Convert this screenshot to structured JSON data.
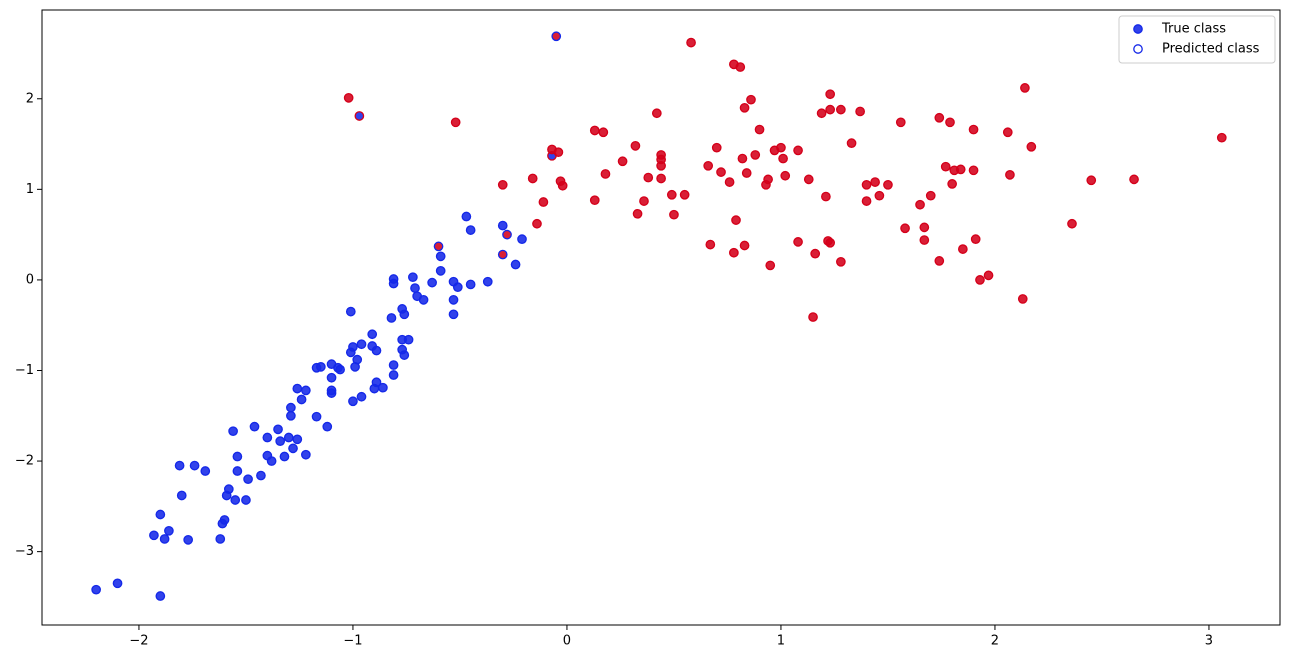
{
  "chart_data": {
    "type": "scatter",
    "legend_labels": [
      "True class",
      "Predicted class"
    ],
    "legend": "upper right",
    "class_colors": [
      "#1428e8",
      "#d4001a"
    ],
    "xlim": [
      -2.453,
      3.332
    ],
    "ylim": [
      -3.81,
      2.98
    ],
    "xticks": [
      {
        "value": -2,
        "label": "−2"
      },
      {
        "value": -1,
        "label": "−1"
      },
      0,
      1,
      2,
      3
    ],
    "yticks": [
      {
        "value": -3,
        "label": "−3"
      },
      {
        "value": -2,
        "label": "−2"
      },
      {
        "value": -1,
        "label": "−1"
      },
      0,
      1,
      2
    ],
    "x": [
      -2.2,
      -2.1,
      -1.9,
      -1.93,
      -1.88,
      -1.86,
      -1.9,
      -1.77,
      -1.8,
      -1.81,
      -1.74,
      -1.69,
      -1.62,
      -1.61,
      -1.6,
      -1.59,
      -1.58,
      -1.55,
      -1.54,
      -1.54,
      -1.56,
      -1.5,
      -1.49,
      -1.46,
      -1.43,
      -1.4,
      -1.4,
      -1.38,
      -1.35,
      -1.34,
      -1.32,
      -1.3,
      -1.29,
      -1.29,
      -1.28,
      -1.26,
      -1.26,
      -1.24,
      -1.22,
      -1.22,
      -1.17,
      -1.17,
      -1.15,
      -1.12,
      -1.1,
      -1.1,
      -1.1,
      -1.1,
      -1.07,
      -1.06,
      -1.01,
      -1.01,
      -1.0,
      -1.0,
      -0.99,
      -0.98,
      -0.96,
      -0.96,
      -0.91,
      -0.91,
      -0.9,
      -0.89,
      -0.89,
      -0.86,
      -0.82,
      -0.81,
      -0.81,
      -0.81,
      -0.81,
      -0.77,
      -0.77,
      -0.77,
      -0.76,
      -0.76,
      -0.74,
      -0.72,
      -0.71,
      -0.7,
      -0.67,
      -0.63,
      -0.59,
      -0.59,
      -0.53,
      -0.53,
      -0.53,
      -0.51,
      -0.47,
      -0.45,
      -0.45,
      -0.37,
      -0.3,
      -0.24,
      -0.21,
      -0.6,
      -0.3,
      -0.28,
      -0.07,
      -0.05,
      -0.97,
      -1.02,
      -0.52,
      -0.3,
      -0.16,
      -0.14,
      -0.11,
      -0.07,
      -0.04,
      -0.03,
      -0.02,
      0.13,
      0.13,
      0.17,
      0.18,
      0.26,
      0.32,
      0.33,
      0.36,
      0.38,
      0.42,
      0.44,
      0.44,
      0.44,
      0.44,
      0.49,
      0.5,
      0.55,
      0.58,
      0.66,
      0.67,
      0.7,
      0.72,
      0.76,
      0.78,
      0.78,
      0.79,
      0.81,
      0.82,
      0.83,
      0.83,
      0.84,
      0.86,
      0.88,
      0.9,
      0.93,
      0.94,
      0.95,
      0.97,
      1.0,
      1.01,
      1.02,
      1.08,
      1.08,
      1.13,
      1.15,
      1.16,
      1.19,
      1.21,
      1.22,
      1.23,
      1.23,
      1.23,
      1.28,
      1.28,
      1.33,
      1.37,
      1.4,
      1.4,
      1.44,
      1.46,
      1.5,
      1.56,
      1.58,
      1.65,
      1.67,
      1.67,
      1.7,
      1.74,
      1.74,
      1.77,
      1.79,
      1.8,
      1.81,
      1.84,
      1.85,
      1.9,
      1.9,
      1.91,
      1.93,
      1.97,
      2.06,
      2.07,
      2.13,
      2.14,
      2.17,
      2.36,
      2.45,
      2.65,
      3.06
    ],
    "y": [
      -3.42,
      -3.35,
      -3.49,
      -2.82,
      -2.86,
      -2.77,
      -2.59,
      -2.87,
      -2.38,
      -2.05,
      -2.05,
      -2.11,
      -2.86,
      -2.69,
      -2.65,
      -2.38,
      -2.31,
      -2.43,
      -2.11,
      -1.95,
      -1.67,
      -2.43,
      -2.2,
      -1.62,
      -2.16,
      -1.94,
      -1.74,
      -2.0,
      -1.65,
      -1.78,
      -1.95,
      -1.74,
      -1.5,
      -1.41,
      -1.86,
      -1.76,
      -1.2,
      -1.32,
      -1.22,
      -1.93,
      -1.51,
      -0.97,
      -0.96,
      -1.62,
      -0.93,
      -1.25,
      -1.08,
      -1.22,
      -0.97,
      -0.99,
      -0.35,
      -0.8,
      -0.74,
      -1.34,
      -0.96,
      -0.88,
      -0.71,
      -1.29,
      -0.6,
      -0.73,
      -1.2,
      -1.13,
      -0.78,
      -1.19,
      -0.42,
      -0.04,
      0.01,
      -0.94,
      -1.05,
      -0.32,
      -0.66,
      -0.77,
      -0.38,
      -0.83,
      -0.66,
      0.03,
      -0.09,
      -0.18,
      -0.22,
      -0.03,
      0.26,
      0.1,
      -0.02,
      -0.22,
      -0.38,
      -0.08,
      0.7,
      0.55,
      -0.05,
      -0.02,
      0.6,
      0.17,
      0.45,
      0.37,
      0.28,
      0.5,
      1.37,
      2.69,
      1.81,
      2.01,
      1.74,
      1.05,
      1.12,
      0.62,
      0.86,
      1.44,
      1.41,
      1.09,
      1.04,
      0.88,
      1.65,
      1.63,
      1.17,
      1.31,
      1.48,
      0.73,
      0.87,
      1.13,
      1.84,
      1.12,
      1.33,
      1.38,
      1.26,
      0.94,
      0.72,
      0.94,
      2.62,
      1.26,
      0.39,
      1.46,
      1.19,
      1.08,
      0.3,
      2.38,
      0.66,
      2.35,
      1.34,
      0.38,
      1.9,
      1.18,
      1.99,
      1.38,
      1.66,
      1.05,
      1.11,
      0.16,
      1.43,
      1.46,
      1.34,
      1.15,
      1.43,
      0.42,
      1.11,
      -0.41,
      0.29,
      1.84,
      0.92,
      0.43,
      0.41,
      2.05,
      1.88,
      1.88,
      0.2,
      1.51,
      1.86,
      1.05,
      0.87,
      1.08,
      0.93,
      1.05,
      1.74,
      0.57,
      0.83,
      0.58,
      0.44,
      0.93,
      1.79,
      0.21,
      1.25,
      1.74,
      1.06,
      1.21,
      1.22,
      0.34,
      1.66,
      1.21,
      0.45,
      0.0,
      0.05,
      1.63,
      1.16,
      -0.21,
      2.12,
      1.47,
      0.62,
      1.1,
      1.11,
      1.57
    ],
    "true_class": [
      0,
      0,
      0,
      0,
      0,
      0,
      0,
      0,
      0,
      0,
      0,
      0,
      0,
      0,
      0,
      0,
      0,
      0,
      0,
      0,
      0,
      0,
      0,
      0,
      0,
      0,
      0,
      0,
      0,
      0,
      0,
      0,
      0,
      0,
      0,
      0,
      0,
      0,
      0,
      0,
      0,
      0,
      0,
      0,
      0,
      0,
      0,
      0,
      0,
      0,
      0,
      0,
      0,
      0,
      0,
      0,
      0,
      0,
      0,
      0,
      0,
      0,
      0,
      0,
      0,
      0,
      0,
      0,
      0,
      0,
      0,
      0,
      0,
      0,
      0,
      0,
      0,
      0,
      0,
      0,
      0,
      0,
      0,
      0,
      0,
      0,
      0,
      0,
      0,
      0,
      0,
      0,
      0,
      1,
      1,
      1,
      0,
      1,
      0,
      1,
      1,
      1,
      1,
      1,
      1,
      1,
      1,
      1,
      1,
      1,
      1,
      1,
      1,
      1,
      1,
      1,
      1,
      1,
      1,
      1,
      1,
      1,
      1,
      1,
      1,
      1,
      1,
      1,
      1,
      1,
      1,
      1,
      1,
      1,
      1,
      1,
      1,
      1,
      1,
      1,
      1,
      1,
      1,
      1,
      1,
      1,
      1,
      1,
      1,
      1,
      1,
      1,
      1,
      1,
      1,
      1,
      1,
      1,
      1,
      1,
      1,
      1,
      1,
      1,
      1,
      1,
      1,
      1,
      1,
      1,
      1,
      1,
      1,
      1,
      1,
      1,
      1,
      1,
      1,
      1,
      1,
      1,
      1,
      1,
      1,
      1,
      1,
      1,
      1,
      1,
      1,
      1,
      1,
      1,
      1,
      1,
      1,
      1
    ],
    "predicted_class": [
      0,
      0,
      0,
      0,
      0,
      0,
      0,
      0,
      0,
      0,
      0,
      0,
      0,
      0,
      0,
      0,
      0,
      0,
      0,
      0,
      0,
      0,
      0,
      0,
      0,
      0,
      0,
      0,
      0,
      0,
      0,
      0,
      0,
      0,
      0,
      0,
      0,
      0,
      0,
      0,
      0,
      0,
      0,
      0,
      0,
      0,
      0,
      0,
      0,
      0,
      0,
      0,
      0,
      0,
      0,
      0,
      0,
      0,
      0,
      0,
      0,
      0,
      0,
      0,
      0,
      0,
      0,
      0,
      0,
      0,
      0,
      0,
      0,
      0,
      0,
      0,
      0,
      0,
      0,
      0,
      0,
      0,
      0,
      0,
      0,
      0,
      0,
      0,
      0,
      0,
      0,
      0,
      0,
      0,
      0,
      0,
      1,
      0,
      1,
      1,
      1,
      1,
      1,
      1,
      1,
      1,
      1,
      1,
      1,
      1,
      1,
      1,
      1,
      1,
      1,
      1,
      1,
      1,
      1,
      1,
      1,
      1,
      1,
      1,
      1,
      1,
      1,
      1,
      1,
      1,
      1,
      1,
      1,
      1,
      1,
      1,
      1,
      1,
      1,
      1,
      1,
      1,
      1,
      1,
      1,
      1,
      1,
      1,
      1,
      1,
      1,
      1,
      1,
      1,
      1,
      1,
      1,
      1,
      1,
      1,
      1,
      1,
      1,
      1,
      1,
      1,
      1,
      1,
      1,
      1,
      1,
      1,
      1,
      1,
      1,
      1,
      1,
      1,
      1,
      1,
      1,
      1,
      1,
      1,
      1,
      1,
      1,
      1,
      1,
      1,
      1,
      1,
      1,
      1,
      1,
      1,
      1,
      1
    ]
  }
}
